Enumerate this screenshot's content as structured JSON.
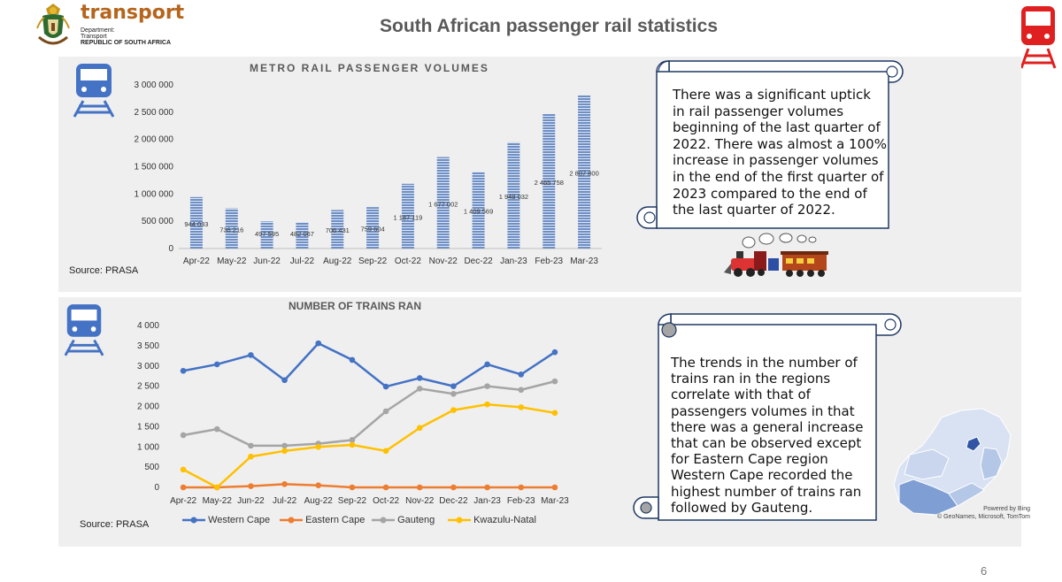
{
  "header": {
    "logo_name": "transport",
    "logo_line1": "Department:",
    "logo_line2": "Transport",
    "logo_line3": "REPUBLIC OF SOUTH AFRICA",
    "title": "South African passenger rail statistics"
  },
  "colors": {
    "bar": "#6f8fc4",
    "western_cape": "#4472c4",
    "eastern_cape": "#ed7d31",
    "gauteng": "#a5a5a5",
    "kwazulu_natal": "#ffc000",
    "icon_blue": "#4472c4",
    "icon_red": "#e02020"
  },
  "chart_data": [
    {
      "type": "bar",
      "title": "METRO RAIL PASSENGER VOLUMES",
      "categories": [
        "Apr-22",
        "May-22",
        "Jun-22",
        "Jul-22",
        "Aug-22",
        "Sep-22",
        "Oct-22",
        "Nov-22",
        "Dec-22",
        "Jan-23",
        "Feb-23",
        "Mar-23"
      ],
      "values": [
        944033,
        736216,
        497595,
        482067,
        706431,
        759604,
        1187119,
        1677002,
        1409569,
        1948032,
        2465758,
        2807800
      ],
      "value_labels": [
        "944 033",
        "736 216",
        "497 595",
        "482 067",
        "706 431",
        "759 604",
        "1 187 119",
        "1 677 002",
        "1 409 569",
        "1 948 032",
        "2 465 758",
        "2 807 800"
      ],
      "ylim": [
        0,
        3000000
      ],
      "yticks": [
        0,
        500000,
        1000000,
        1500000,
        2000000,
        2500000,
        3000000
      ],
      "ytick_labels": [
        "0",
        "500 000",
        "1 000 000",
        "1 500 000",
        "2 000 000",
        "2 500 000",
        "3 000 000"
      ],
      "xlabel": "",
      "ylabel": "",
      "source": "Source: PRASA"
    },
    {
      "type": "line",
      "title": "NUMBER OF TRAINS RAN",
      "categories": [
        "Apr-22",
        "May-22",
        "Jun-22",
        "Jul-22",
        "Aug-22",
        "Sep-22",
        "Oct-22",
        "Nov-22",
        "Dec-22",
        "Jan-23",
        "Feb-23",
        "Mar-23"
      ],
      "series": [
        {
          "name": "Western Cape",
          "key": "western_cape",
          "values": [
            2880,
            3040,
            3270,
            2650,
            3560,
            3150,
            2490,
            2700,
            2500,
            3040,
            2790,
            3340
          ]
        },
        {
          "name": "Eastern Cape",
          "key": "eastern_cape",
          "values": [
            0,
            0,
            30,
            80,
            50,
            0,
            0,
            0,
            0,
            0,
            0,
            0
          ]
        },
        {
          "name": "Gauteng",
          "key": "gauteng",
          "values": [
            1290,
            1440,
            1030,
            1030,
            1080,
            1170,
            1880,
            2440,
            2310,
            2500,
            2410,
            2620
          ]
        },
        {
          "name": "Kwazulu-Natal",
          "key": "kwazulu_natal",
          "values": [
            440,
            0,
            760,
            900,
            1000,
            1050,
            900,
            1470,
            1910,
            2050,
            1980,
            1840
          ]
        }
      ],
      "ylim": [
        0,
        4000
      ],
      "yticks": [
        0,
        500,
        1000,
        1500,
        2000,
        2500,
        3000,
        3500,
        4000
      ],
      "ytick_labels": [
        "0",
        "500",
        "1 000",
        "1 500",
        "2 000",
        "2 500",
        "3 000",
        "3 500",
        "4 000"
      ],
      "xlabel": "",
      "ylabel": "",
      "legend_position": "bottom",
      "source": "Source: PRASA"
    }
  ],
  "notes": {
    "top_lines": [
      "There  was a significant uptick",
      "in rail passenger volumes",
      "beginning of the last quarter of",
      "2022. There was almost a 100%",
      "increase in passenger volumes",
      "in the end of the first quarter of",
      "2023 compared to the  end of",
      "the last quarter of 2022."
    ],
    "bottom_lines": [
      "The trends in the number of",
      "trains ran in the regions",
      "correlate with that of",
      "passengers volumes in that",
      "there was a general increase",
      "that can be observed except",
      "for Eastern Cape region",
      "Western Cape recorded the",
      "highest number of trains ran",
      "followed by Gauteng."
    ]
  },
  "map": {
    "powered": "Powered by Bing",
    "credit": "© GeoNames, Microsoft, TomTom"
  },
  "page_number": "6"
}
